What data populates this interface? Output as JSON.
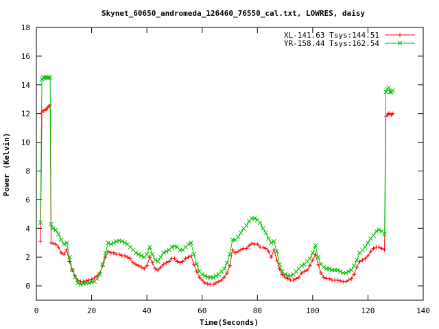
{
  "chart_data": {
    "type": "line",
    "title": "Skynet_60650_andromeda_126460_76550_cal.txt, LOWRES, daisy",
    "xlabel": "Time(Seconds)",
    "ylabel": "Power (Kelvin)",
    "xlim": [
      0,
      140
    ],
    "ylim": [
      -1,
      18
    ],
    "x_ticks": [
      0,
      20,
      40,
      60,
      80,
      100,
      120,
      140
    ],
    "y_ticks": [
      0,
      2,
      4,
      6,
      8,
      10,
      12,
      14,
      16,
      18
    ],
    "grid": false,
    "legend_position": "top-right",
    "series": [
      {
        "name": "XL-141.63 Tsys:144.51",
        "color": "#ff0000",
        "marker": "plus",
        "points": [
          [
            1.5,
            3.1
          ],
          [
            2.0,
            12.1
          ],
          [
            2.5,
            12.2
          ],
          [
            3.0,
            12.2
          ],
          [
            3.5,
            12.3
          ],
          [
            4.0,
            12.4
          ],
          [
            4.5,
            12.5
          ],
          [
            5.0,
            12.6
          ],
          [
            5.3,
            3.0
          ],
          [
            6,
            2.95
          ],
          [
            7,
            2.9
          ],
          [
            8,
            2.7
          ],
          [
            9,
            2.3
          ],
          [
            10,
            2.2
          ],
          [
            11,
            2.5
          ],
          [
            12,
            1.7
          ],
          [
            13,
            1.1
          ],
          [
            14,
            0.7
          ],
          [
            15,
            0.4
          ],
          [
            16,
            0.3
          ],
          [
            17,
            0.3
          ],
          [
            18,
            0.35
          ],
          [
            19,
            0.4
          ],
          [
            20,
            0.45
          ],
          [
            21,
            0.55
          ],
          [
            22,
            0.7
          ],
          [
            23,
            0.9
          ],
          [
            24,
            1.4
          ],
          [
            25,
            2.0
          ],
          [
            26,
            2.4
          ],
          [
            27,
            2.3
          ],
          [
            28,
            2.3
          ],
          [
            29,
            2.2
          ],
          [
            30,
            2.2
          ],
          [
            31,
            2.1
          ],
          [
            32,
            2.1
          ],
          [
            33,
            2.0
          ],
          [
            34,
            1.9
          ],
          [
            35,
            1.6
          ],
          [
            36,
            1.5
          ],
          [
            37,
            1.4
          ],
          [
            38,
            1.3
          ],
          [
            39,
            1.2
          ],
          [
            40,
            1.4
          ],
          [
            41,
            2.0
          ],
          [
            42,
            1.6
          ],
          [
            43,
            1.2
          ],
          [
            44,
            1.1
          ],
          [
            45,
            1.3
          ],
          [
            46,
            1.5
          ],
          [
            47,
            1.6
          ],
          [
            48,
            1.7
          ],
          [
            49,
            1.9
          ],
          [
            50,
            1.9
          ],
          [
            51,
            1.7
          ],
          [
            52,
            1.6
          ],
          [
            53,
            1.7
          ],
          [
            54,
            1.9
          ],
          [
            55,
            2.0
          ],
          [
            56,
            2.1
          ],
          [
            57,
            1.5
          ],
          [
            58,
            1.0
          ],
          [
            59,
            0.6
          ],
          [
            60,
            0.4
          ],
          [
            61,
            0.2
          ],
          [
            62,
            0.15
          ],
          [
            63,
            0.1
          ],
          [
            64,
            0.1
          ],
          [
            65,
            0.2
          ],
          [
            66,
            0.3
          ],
          [
            67,
            0.4
          ],
          [
            68,
            0.6
          ],
          [
            69,
            0.9
          ],
          [
            70,
            1.4
          ],
          [
            71,
            2.5
          ],
          [
            72,
            2.3
          ],
          [
            73,
            2.4
          ],
          [
            74,
            2.5
          ],
          [
            75,
            2.6
          ],
          [
            76,
            2.6
          ],
          [
            77,
            2.8
          ],
          [
            78,
            2.95
          ],
          [
            79,
            2.9
          ],
          [
            80,
            2.9
          ],
          [
            81,
            2.7
          ],
          [
            82,
            2.7
          ],
          [
            83,
            2.6
          ],
          [
            84,
            2.4
          ],
          [
            85,
            2.0
          ],
          [
            86,
            2.5
          ],
          [
            87,
            1.8
          ],
          [
            88,
            1.2
          ],
          [
            89,
            0.8
          ],
          [
            90,
            0.6
          ],
          [
            91,
            0.5
          ],
          [
            92,
            0.4
          ],
          [
            93,
            0.4
          ],
          [
            94,
            0.5
          ],
          [
            95,
            0.6
          ],
          [
            96,
            0.9
          ],
          [
            97,
            1.0
          ],
          [
            98,
            1.1
          ],
          [
            99,
            1.4
          ],
          [
            100,
            1.8
          ],
          [
            101,
            2.2
          ],
          [
            102,
            1.5
          ],
          [
            103,
            0.9
          ],
          [
            104,
            0.6
          ],
          [
            105,
            0.5
          ],
          [
            106,
            0.5
          ],
          [
            107,
            0.4
          ],
          [
            108,
            0.4
          ],
          [
            109,
            0.4
          ],
          [
            110,
            0.35
          ],
          [
            111,
            0.3
          ],
          [
            112,
            0.3
          ],
          [
            113,
            0.4
          ],
          [
            114,
            0.5
          ],
          [
            115,
            0.8
          ],
          [
            116,
            1.3
          ],
          [
            117,
            1.7
          ],
          [
            118,
            1.8
          ],
          [
            119,
            1.9
          ],
          [
            120,
            2.1
          ],
          [
            121,
            2.4
          ],
          [
            122,
            2.6
          ],
          [
            123,
            2.7
          ],
          [
            124,
            2.7
          ],
          [
            125,
            2.6
          ],
          [
            126,
            2.5
          ],
          [
            126.5,
            11.8
          ],
          [
            127,
            11.9
          ],
          [
            127.5,
            12.0
          ],
          [
            128,
            12.0
          ],
          [
            128.5,
            11.9
          ],
          [
            129,
            12.0
          ]
        ]
      },
      {
        "name": "YR-158.44 Tsys:162.54",
        "color": "#00c000",
        "marker": "cross",
        "points": [
          [
            1.5,
            4.4
          ],
          [
            2.0,
            14.4
          ],
          [
            2.5,
            14.5
          ],
          [
            3.0,
            14.5
          ],
          [
            3.5,
            14.5
          ],
          [
            4.0,
            14.5
          ],
          [
            4.5,
            14.5
          ],
          [
            5.0,
            14.5
          ],
          [
            5.3,
            4.3
          ],
          [
            6,
            4.0
          ],
          [
            7,
            3.9
          ],
          [
            8,
            3.6
          ],
          [
            9,
            3.2
          ],
          [
            10,
            2.9
          ],
          [
            11,
            3.0
          ],
          [
            12,
            2.0
          ],
          [
            13,
            1.1
          ],
          [
            14,
            0.6
          ],
          [
            15,
            0.2
          ],
          [
            16,
            0.1
          ],
          [
            17,
            0.15
          ],
          [
            18,
            0.2
          ],
          [
            19,
            0.2
          ],
          [
            20,
            0.25
          ],
          [
            21,
            0.3
          ],
          [
            22,
            0.5
          ],
          [
            23,
            0.8
          ],
          [
            24,
            1.5
          ],
          [
            25,
            2.3
          ],
          [
            26,
            3.0
          ],
          [
            27,
            2.9
          ],
          [
            28,
            3.0
          ],
          [
            29,
            3.1
          ],
          [
            30,
            3.15
          ],
          [
            31,
            3.1
          ],
          [
            32,
            3.0
          ],
          [
            33,
            2.9
          ],
          [
            34,
            2.7
          ],
          [
            35,
            2.5
          ],
          [
            36,
            2.3
          ],
          [
            37,
            2.2
          ],
          [
            38,
            2.1
          ],
          [
            39,
            2.0
          ],
          [
            40,
            2.2
          ],
          [
            41,
            2.7
          ],
          [
            42,
            2.2
          ],
          [
            43,
            1.8
          ],
          [
            44,
            1.7
          ],
          [
            45,
            2.0
          ],
          [
            46,
            2.3
          ],
          [
            47,
            2.4
          ],
          [
            48,
            2.5
          ],
          [
            49,
            2.7
          ],
          [
            50,
            2.75
          ],
          [
            51,
            2.7
          ],
          [
            52,
            2.5
          ],
          [
            53,
            2.5
          ],
          [
            54,
            2.7
          ],
          [
            55,
            2.9
          ],
          [
            56,
            3.0
          ],
          [
            57,
            2.2
          ],
          [
            58,
            1.5
          ],
          [
            59,
            1.0
          ],
          [
            60,
            0.8
          ],
          [
            61,
            0.7
          ],
          [
            62,
            0.6
          ],
          [
            63,
            0.6
          ],
          [
            64,
            0.6
          ],
          [
            65,
            0.7
          ],
          [
            66,
            0.8
          ],
          [
            67,
            1.0
          ],
          [
            68,
            1.2
          ],
          [
            69,
            1.6
          ],
          [
            70,
            2.2
          ],
          [
            71,
            3.2
          ],
          [
            72,
            3.2
          ],
          [
            73,
            3.4
          ],
          [
            74,
            3.7
          ],
          [
            75,
            4.0
          ],
          [
            76,
            4.2
          ],
          [
            77,
            4.5
          ],
          [
            78,
            4.7
          ],
          [
            79,
            4.7
          ],
          [
            80,
            4.6
          ],
          [
            81,
            4.4
          ],
          [
            82,
            4.0
          ],
          [
            83,
            3.7
          ],
          [
            84,
            3.3
          ],
          [
            85,
            3.0
          ],
          [
            86,
            3.1
          ],
          [
            87,
            2.4
          ],
          [
            88,
            1.5
          ],
          [
            89,
            1.0
          ],
          [
            90,
            0.8
          ],
          [
            91,
            0.7
          ],
          [
            92,
            0.7
          ],
          [
            93,
            0.8
          ],
          [
            94,
            1.0
          ],
          [
            95,
            1.2
          ],
          [
            96,
            1.4
          ],
          [
            97,
            1.5
          ],
          [
            98,
            1.7
          ],
          [
            99,
            1.9
          ],
          [
            100,
            2.3
          ],
          [
            101,
            2.8
          ],
          [
            102,
            2.0
          ],
          [
            103,
            1.5
          ],
          [
            104,
            1.3
          ],
          [
            105,
            1.2
          ],
          [
            106,
            1.2
          ],
          [
            107,
            1.1
          ],
          [
            108,
            1.1
          ],
          [
            109,
            1.1
          ],
          [
            110,
            1.0
          ],
          [
            111,
            0.9
          ],
          [
            112,
            0.9
          ],
          [
            113,
            1.0
          ],
          [
            114,
            1.1
          ],
          [
            115,
            1.4
          ],
          [
            116,
            1.8
          ],
          [
            117,
            2.3
          ],
          [
            118,
            2.5
          ],
          [
            119,
            2.7
          ],
          [
            120,
            3.0
          ],
          [
            121,
            3.3
          ],
          [
            122,
            3.5
          ],
          [
            123,
            3.8
          ],
          [
            124,
            3.9
          ],
          [
            125,
            3.8
          ],
          [
            126,
            3.6
          ],
          [
            126.5,
            13.5
          ],
          [
            127,
            13.7
          ],
          [
            127.5,
            13.8
          ],
          [
            128,
            13.5
          ],
          [
            128.5,
            13.5
          ],
          [
            129,
            13.6
          ]
        ]
      }
    ]
  }
}
